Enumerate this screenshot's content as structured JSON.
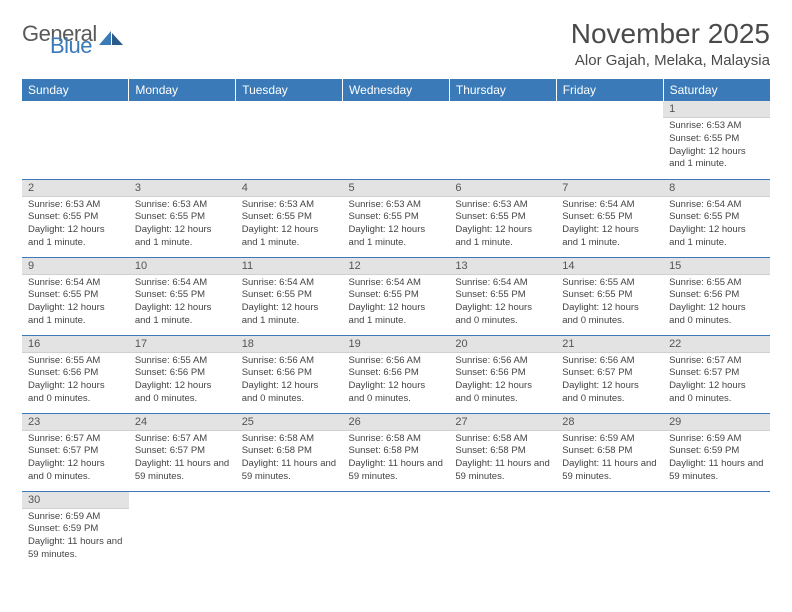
{
  "logo": {
    "general": "General",
    "blue": "Blue"
  },
  "title": "November 2025",
  "location": "Alor Gajah, Melaka, Malaysia",
  "colors": {
    "header_bg": "#3a7ab8",
    "header_text": "#ffffff",
    "daynum_bg": "#e3e3e3",
    "row_border": "#3a7ab8",
    "text": "#444444"
  },
  "day_headers": [
    "Sunday",
    "Monday",
    "Tuesday",
    "Wednesday",
    "Thursday",
    "Friday",
    "Saturday"
  ],
  "weeks": [
    [
      null,
      null,
      null,
      null,
      null,
      null,
      {
        "n": "1",
        "sr": "6:53 AM",
        "ss": "6:55 PM",
        "dl": "12 hours and 1 minute."
      }
    ],
    [
      {
        "n": "2",
        "sr": "6:53 AM",
        "ss": "6:55 PM",
        "dl": "12 hours and 1 minute."
      },
      {
        "n": "3",
        "sr": "6:53 AM",
        "ss": "6:55 PM",
        "dl": "12 hours and 1 minute."
      },
      {
        "n": "4",
        "sr": "6:53 AM",
        "ss": "6:55 PM",
        "dl": "12 hours and 1 minute."
      },
      {
        "n": "5",
        "sr": "6:53 AM",
        "ss": "6:55 PM",
        "dl": "12 hours and 1 minute."
      },
      {
        "n": "6",
        "sr": "6:53 AM",
        "ss": "6:55 PM",
        "dl": "12 hours and 1 minute."
      },
      {
        "n": "7",
        "sr": "6:54 AM",
        "ss": "6:55 PM",
        "dl": "12 hours and 1 minute."
      },
      {
        "n": "8",
        "sr": "6:54 AM",
        "ss": "6:55 PM",
        "dl": "12 hours and 1 minute."
      }
    ],
    [
      {
        "n": "9",
        "sr": "6:54 AM",
        "ss": "6:55 PM",
        "dl": "12 hours and 1 minute."
      },
      {
        "n": "10",
        "sr": "6:54 AM",
        "ss": "6:55 PM",
        "dl": "12 hours and 1 minute."
      },
      {
        "n": "11",
        "sr": "6:54 AM",
        "ss": "6:55 PM",
        "dl": "12 hours and 1 minute."
      },
      {
        "n": "12",
        "sr": "6:54 AM",
        "ss": "6:55 PM",
        "dl": "12 hours and 1 minute."
      },
      {
        "n": "13",
        "sr": "6:54 AM",
        "ss": "6:55 PM",
        "dl": "12 hours and 0 minutes."
      },
      {
        "n": "14",
        "sr": "6:55 AM",
        "ss": "6:55 PM",
        "dl": "12 hours and 0 minutes."
      },
      {
        "n": "15",
        "sr": "6:55 AM",
        "ss": "6:56 PM",
        "dl": "12 hours and 0 minutes."
      }
    ],
    [
      {
        "n": "16",
        "sr": "6:55 AM",
        "ss": "6:56 PM",
        "dl": "12 hours and 0 minutes."
      },
      {
        "n": "17",
        "sr": "6:55 AM",
        "ss": "6:56 PM",
        "dl": "12 hours and 0 minutes."
      },
      {
        "n": "18",
        "sr": "6:56 AM",
        "ss": "6:56 PM",
        "dl": "12 hours and 0 minutes."
      },
      {
        "n": "19",
        "sr": "6:56 AM",
        "ss": "6:56 PM",
        "dl": "12 hours and 0 minutes."
      },
      {
        "n": "20",
        "sr": "6:56 AM",
        "ss": "6:56 PM",
        "dl": "12 hours and 0 minutes."
      },
      {
        "n": "21",
        "sr": "6:56 AM",
        "ss": "6:57 PM",
        "dl": "12 hours and 0 minutes."
      },
      {
        "n": "22",
        "sr": "6:57 AM",
        "ss": "6:57 PM",
        "dl": "12 hours and 0 minutes."
      }
    ],
    [
      {
        "n": "23",
        "sr": "6:57 AM",
        "ss": "6:57 PM",
        "dl": "12 hours and 0 minutes."
      },
      {
        "n": "24",
        "sr": "6:57 AM",
        "ss": "6:57 PM",
        "dl": "11 hours and 59 minutes."
      },
      {
        "n": "25",
        "sr": "6:58 AM",
        "ss": "6:58 PM",
        "dl": "11 hours and 59 minutes."
      },
      {
        "n": "26",
        "sr": "6:58 AM",
        "ss": "6:58 PM",
        "dl": "11 hours and 59 minutes."
      },
      {
        "n": "27",
        "sr": "6:58 AM",
        "ss": "6:58 PM",
        "dl": "11 hours and 59 minutes."
      },
      {
        "n": "28",
        "sr": "6:59 AM",
        "ss": "6:58 PM",
        "dl": "11 hours and 59 minutes."
      },
      {
        "n": "29",
        "sr": "6:59 AM",
        "ss": "6:59 PM",
        "dl": "11 hours and 59 minutes."
      }
    ],
    [
      {
        "n": "30",
        "sr": "6:59 AM",
        "ss": "6:59 PM",
        "dl": "11 hours and 59 minutes."
      },
      null,
      null,
      null,
      null,
      null,
      null
    ]
  ],
  "labels": {
    "sunrise": "Sunrise: ",
    "sunset": "Sunset: ",
    "daylight": "Daylight: "
  }
}
